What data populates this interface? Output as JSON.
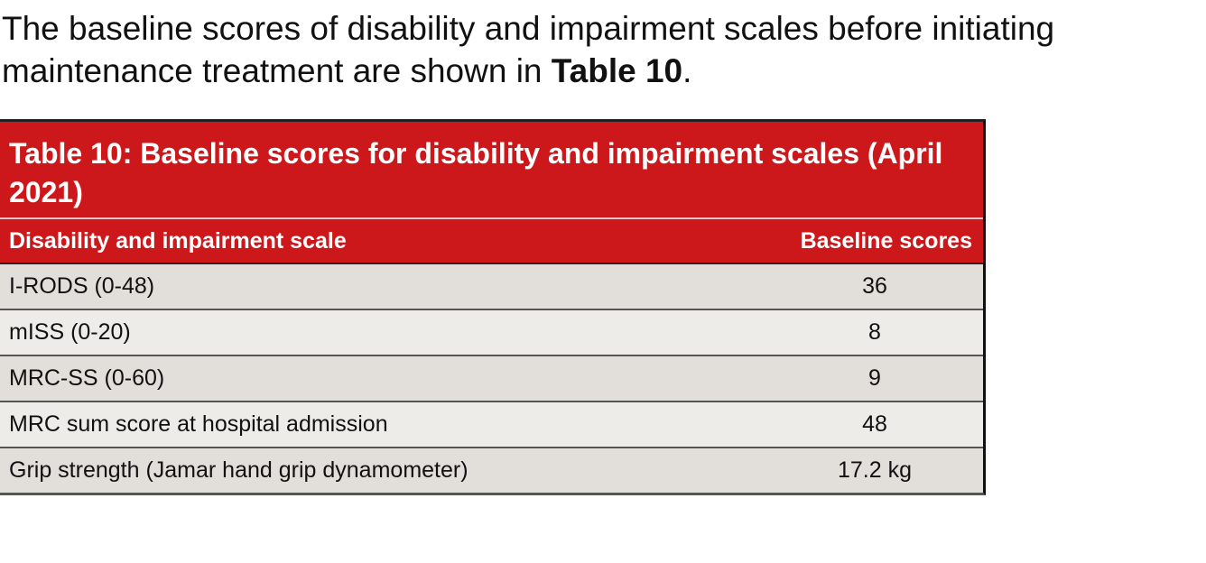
{
  "intro": {
    "text_before": "The baseline scores of disability and impairment scales before initiating maintenance treatment are shown in ",
    "ref": "Table 10",
    "text_after": "."
  },
  "table": {
    "caption": "Table 10: Baseline scores for disability and impairment scales (April 2021)",
    "header_color": "#cc181b",
    "columns": [
      "Disability and impairment scale",
      "Baseline scores"
    ],
    "rows": [
      [
        "I-RODS (0-48)",
        "36"
      ],
      [
        "mISS (0-20)",
        "8"
      ],
      [
        "MRC-SS (0-60)",
        "9"
      ],
      [
        "MRC sum score at hospital admission",
        "48"
      ],
      [
        "Grip strength (Jamar hand grip dynamometer)",
        "17.2 kg"
      ]
    ]
  }
}
